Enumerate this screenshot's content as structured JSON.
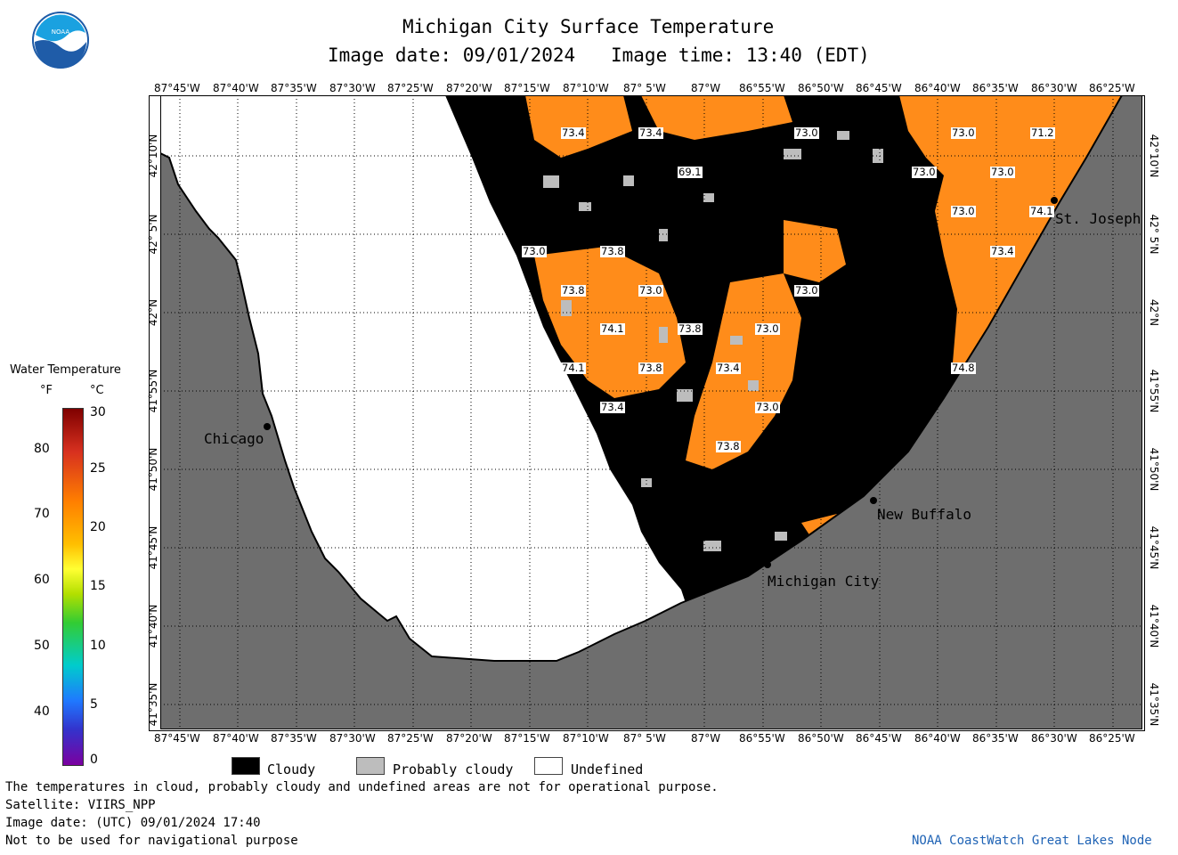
{
  "header": {
    "title": "Michigan City Surface Temperature",
    "image_date": "Image date: 09/01/2024",
    "image_time": "Image time: 13:40 (EDT)",
    "logo_text": "NOAA"
  },
  "axes": {
    "lon_labels": [
      "87°45'W",
      "87°40'W",
      "87°35'W",
      "87°30'W",
      "87°25'W",
      "87°20'W",
      "87°15'W",
      "87°10'W",
      "87° 5'W",
      "87°W",
      "86°55'W",
      "86°50'W",
      "86°45'W",
      "86°40'W",
      "86°35'W",
      "86°30'W",
      "86°25'W"
    ],
    "lat_labels": [
      "42°10'N",
      "42° 5'N",
      "42°N",
      "41°55'N",
      "41°50'N",
      "41°45'N",
      "41°40'N",
      "41°35'N"
    ]
  },
  "cities": [
    {
      "name": "Chicago"
    },
    {
      "name": "St. Joseph"
    },
    {
      "name": "New Buffalo"
    },
    {
      "name": "Michigan City"
    }
  ],
  "temperature_labels": [
    "73.4",
    "73.4",
    "73.0",
    "73.0",
    "71.2",
    "69.1",
    "73.0",
    "73.0",
    "73.0",
    "74.1",
    "73.0",
    "73.8",
    "73.4",
    "73.8",
    "73.0",
    "73.0",
    "74.1",
    "73.8",
    "73.0",
    "74.1",
    "73.8",
    "73.4",
    "74.8",
    "73.4",
    "73.0",
    "73.8"
  ],
  "colorbar": {
    "title": "Water Temperature",
    "unit_f": "°F",
    "unit_c": "°C",
    "f_ticks": [
      "80",
      "70",
      "60",
      "50",
      "40"
    ],
    "c_ticks": [
      "30",
      "25",
      "20",
      "15",
      "10",
      "5",
      "0"
    ]
  },
  "legend": {
    "cloudy": "Cloudy",
    "probably_cloudy": "Probably cloudy",
    "undefined": "Undefined"
  },
  "colors": {
    "land": "#6e6e6e",
    "cloud": "#000000",
    "probably_cloudy": "#bdbdbd",
    "undefined": "#ffffff",
    "water_warm": "#ff8c1a"
  },
  "footer": {
    "disclaimer": "The temperatures in cloud, probably cloudy and undefined areas are not for operational purpose.",
    "satellite": "Satellite: VIIRS_NPP",
    "utc_date": "Image date: (UTC) 09/01/2024  17:40",
    "nav_warning": "Not to be used for navigational purpose",
    "credit": "NOAA CoastWatch Great Lakes Node"
  }
}
